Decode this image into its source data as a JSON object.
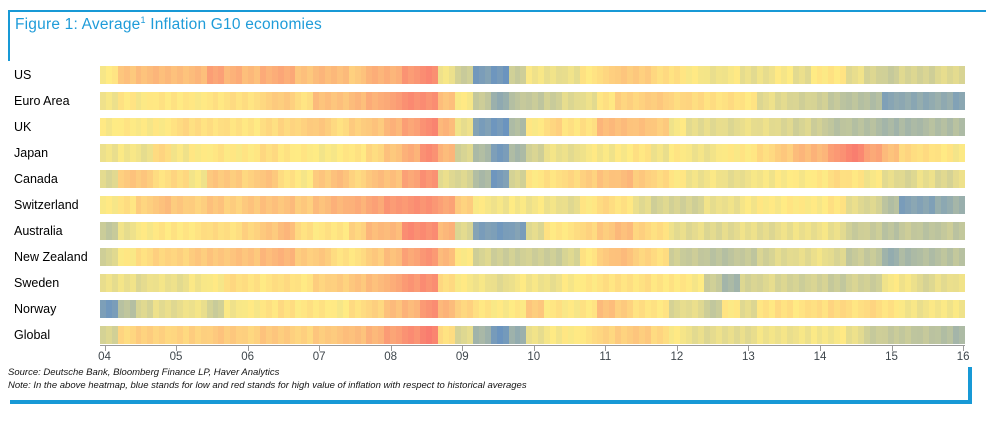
{
  "figure": {
    "title_prefix": "Figure 1: Average",
    "title_superscript": "1",
    "title_suffix": " Inflation G10 economies"
  },
  "accent_color": "#1899d6",
  "source_line": "Source: Deutsche Bank, Bloomberg Finance LP, Haver Analytics",
  "note_line": "Note: In the above heatmap, blue stands for low and red stands for high value of inflation with respect to historical averages",
  "chart_data": {
    "type": "heatmap",
    "title": "Average Inflation G10 economies",
    "x_axis": "Year (2004-2016)",
    "x_tick_labels": [
      "04",
      "05",
      "06",
      "07",
      "08",
      "09",
      "10",
      "11",
      "12",
      "13",
      "14",
      "15",
      "16"
    ],
    "time_resolution": "quarterly values, 2004Q1 through 2016Q1 (49 points per economy)",
    "value_scale": {
      "min": 0,
      "max": 10,
      "low_color": "#5A8AC6",
      "mid_color": "#FFEB84",
      "high_color": "#F8696B",
      "meaning": "0 = inflation very low vs historical average (blue), 5 = neutral (yellow), 10 = very high (red)"
    },
    "legend_position": "none",
    "grid": false,
    "rows": [
      "US",
      "Euro Area",
      "UK",
      "Japan",
      "Canada",
      "Switzerland",
      "Australia",
      "New Zealand",
      "Sweden",
      "Norway",
      "Global"
    ],
    "series": [
      {
        "name": "US",
        "values": [
          5.0,
          6.5,
          6.8,
          6.8,
          6.8,
          6.8,
          7.8,
          7.2,
          6.8,
          7.4,
          7.4,
          6.6,
          6.8,
          6.8,
          6.3,
          7.2,
          7.3,
          8.1,
          8.8,
          4.5,
          3.5,
          1.0,
          0.7,
          3.5,
          4.6,
          4.5,
          4.3,
          5.2,
          5.8,
          6.3,
          6.3,
          5.5,
          5.5,
          4.8,
          4.5,
          4.8,
          4.3,
          4.5,
          4.8,
          4.3,
          5.0,
          5.2,
          4.3,
          3.8,
          3.5,
          3.8,
          3.8,
          4.0,
          4.0
        ]
      },
      {
        "name": "Euro Area",
        "values": [
          4.5,
          5.2,
          4.9,
          5.2,
          5.3,
          4.9,
          5.4,
          5.4,
          5.4,
          6.0,
          6.2,
          5.5,
          6.6,
          6.6,
          6.8,
          7.3,
          7.8,
          8.6,
          8.6,
          6.5,
          5.0,
          3.2,
          1.8,
          3.0,
          3.2,
          3.6,
          4.0,
          4.4,
          5.2,
          6.0,
          6.0,
          6.2,
          5.8,
          5.6,
          5.5,
          5.4,
          5.2,
          4.2,
          4.0,
          3.8,
          3.5,
          3.2,
          2.8,
          2.7,
          1.4,
          1.6,
          1.7,
          1.7,
          1.4
        ]
      },
      {
        "name": "UK",
        "values": [
          4.8,
          5.2,
          4.8,
          5.0,
          5.6,
          5.5,
          5.5,
          5.3,
          5.3,
          5.5,
          5.8,
          6.0,
          6.3,
          5.6,
          6.0,
          6.5,
          7.0,
          7.8,
          8.7,
          7.0,
          4.5,
          1.0,
          0.8,
          2.5,
          5.0,
          5.8,
          5.3,
          5.5,
          6.8,
          6.8,
          6.5,
          6.2,
          4.8,
          4.2,
          4.3,
          4.0,
          4.5,
          4.2,
          4.0,
          3.8,
          3.5,
          3.0,
          2.8,
          2.8,
          2.2,
          2.4,
          2.6,
          2.6,
          2.8
        ]
      },
      {
        "name": "Japan",
        "values": [
          4.5,
          4.8,
          4.3,
          5.8,
          4.6,
          5.0,
          5.2,
          5.0,
          5.2,
          5.5,
          5.3,
          5.0,
          4.8,
          5.0,
          5.2,
          5.8,
          6.4,
          7.4,
          8.5,
          7.0,
          3.8,
          2.5,
          1.0,
          2.3,
          3.8,
          4.4,
          4.3,
          4.8,
          4.7,
          5.0,
          5.2,
          4.6,
          5.0,
          4.6,
          4.6,
          5.0,
          5.2,
          5.5,
          6.3,
          6.8,
          7.0,
          8.2,
          9.0,
          7.8,
          6.6,
          5.8,
          5.4,
          5.2,
          4.9
        ]
      },
      {
        "name": "Canada",
        "values": [
          4.0,
          6.3,
          6.3,
          5.5,
          5.6,
          4.8,
          6.3,
          6.3,
          6.0,
          6.5,
          5.5,
          4.8,
          6.4,
          6.6,
          5.8,
          6.6,
          6.6,
          7.8,
          8.3,
          4.3,
          3.8,
          2.5,
          0.9,
          3.8,
          5.2,
          5.3,
          5.8,
          6.0,
          6.5,
          6.8,
          6.2,
          5.8,
          5.0,
          4.6,
          4.6,
          4.3,
          4.5,
          4.7,
          5.0,
          4.8,
          5.2,
          5.5,
          5.3,
          4.8,
          4.2,
          4.0,
          4.3,
          4.0,
          4.2
        ]
      },
      {
        "name": "Switzerland",
        "values": [
          5.0,
          5.3,
          6.0,
          6.6,
          6.3,
          6.1,
          6.4,
          6.1,
          6.3,
          6.6,
          6.6,
          6.2,
          6.8,
          7.0,
          7.4,
          7.6,
          8.2,
          8.4,
          8.4,
          7.8,
          6.0,
          5.0,
          4.5,
          4.8,
          4.7,
          4.5,
          4.3,
          5.0,
          5.8,
          5.2,
          4.2,
          3.8,
          3.7,
          3.8,
          4.3,
          4.5,
          4.7,
          5.0,
          5.0,
          5.0,
          5.0,
          5.2,
          4.3,
          3.8,
          2.8,
          1.2,
          1.3,
          1.8,
          2.0
        ]
      },
      {
        "name": "Australia",
        "values": [
          3.3,
          4.3,
          5.0,
          5.1,
          5.2,
          5.3,
          5.6,
          5.5,
          5.8,
          6.5,
          6.8,
          5.5,
          5.2,
          5.2,
          6.0,
          6.8,
          7.0,
          8.6,
          8.6,
          7.0,
          4.0,
          1.2,
          0.8,
          1.2,
          4.0,
          5.2,
          5.3,
          5.8,
          6.4,
          6.7,
          6.0,
          5.4,
          4.3,
          4.2,
          4.0,
          4.2,
          4.3,
          4.2,
          4.3,
          4.5,
          4.5,
          4.3,
          3.5,
          3.3,
          3.0,
          3.2,
          3.0,
          3.2,
          3.0
        ]
      },
      {
        "name": "New Zealand",
        "values": [
          3.8,
          5.0,
          5.6,
          5.8,
          6.0,
          6.2,
          6.4,
          6.5,
          6.5,
          7.0,
          7.0,
          6.3,
          6.2,
          5.4,
          5.4,
          6.2,
          6.8,
          7.6,
          8.4,
          6.8,
          5.0,
          3.8,
          3.5,
          3.6,
          3.5,
          3.5,
          3.8,
          5.2,
          6.3,
          6.7,
          6.0,
          5.4,
          3.6,
          3.2,
          3.0,
          3.0,
          3.2,
          3.8,
          4.0,
          4.3,
          4.4,
          4.0,
          3.3,
          3.2,
          2.0,
          2.3,
          2.8,
          2.8,
          3.0
        ]
      },
      {
        "name": "Sweden",
        "values": [
          4.3,
          4.5,
          4.2,
          4.5,
          4.4,
          4.6,
          5.0,
          5.5,
          5.4,
          5.3,
          5.5,
          5.3,
          5.9,
          6.2,
          6.4,
          6.8,
          7.4,
          8.2,
          8.6,
          5.5,
          5.0,
          4.5,
          4.2,
          4.7,
          4.6,
          4.5,
          4.8,
          5.2,
          5.3,
          5.4,
          5.4,
          5.2,
          5.3,
          4.8,
          3.5,
          2.2,
          3.8,
          4.0,
          3.8,
          3.7,
          3.6,
          3.4,
          3.6,
          3.5,
          4.8,
          4.6,
          4.0,
          4.2,
          4.5
        ]
      },
      {
        "name": "Norway",
        "values": [
          0.8,
          3.0,
          3.8,
          4.3,
          4.3,
          4.5,
          3.6,
          4.6,
          5.0,
          5.2,
          5.5,
          5.2,
          5.2,
          5.0,
          5.4,
          6.0,
          6.6,
          7.0,
          8.4,
          7.0,
          6.0,
          5.2,
          5.0,
          5.0,
          6.3,
          5.2,
          4.9,
          5.3,
          6.6,
          6.2,
          5.3,
          5.2,
          4.0,
          4.2,
          3.4,
          5.0,
          4.2,
          5.2,
          5.5,
          5.3,
          5.5,
          5.8,
          5.3,
          5.8,
          5.2,
          4.7,
          4.6,
          4.7,
          4.8
        ]
      },
      {
        "name": "Global",
        "values": [
          3.8,
          5.8,
          6.0,
          6.0,
          5.8,
          6.0,
          6.3,
          6.2,
          6.0,
          6.3,
          6.3,
          5.8,
          6.3,
          6.5,
          6.7,
          7.2,
          7.8,
          8.6,
          9.0,
          5.5,
          4.0,
          2.2,
          0.8,
          1.8,
          4.5,
          4.7,
          5.0,
          5.4,
          5.9,
          6.2,
          6.2,
          5.8,
          4.8,
          4.3,
          4.2,
          4.2,
          4.3,
          4.5,
          4.6,
          4.5,
          4.7,
          4.8,
          4.3,
          3.5,
          3.2,
          3.3,
          3.0,
          2.8,
          2.5
        ]
      }
    ]
  }
}
